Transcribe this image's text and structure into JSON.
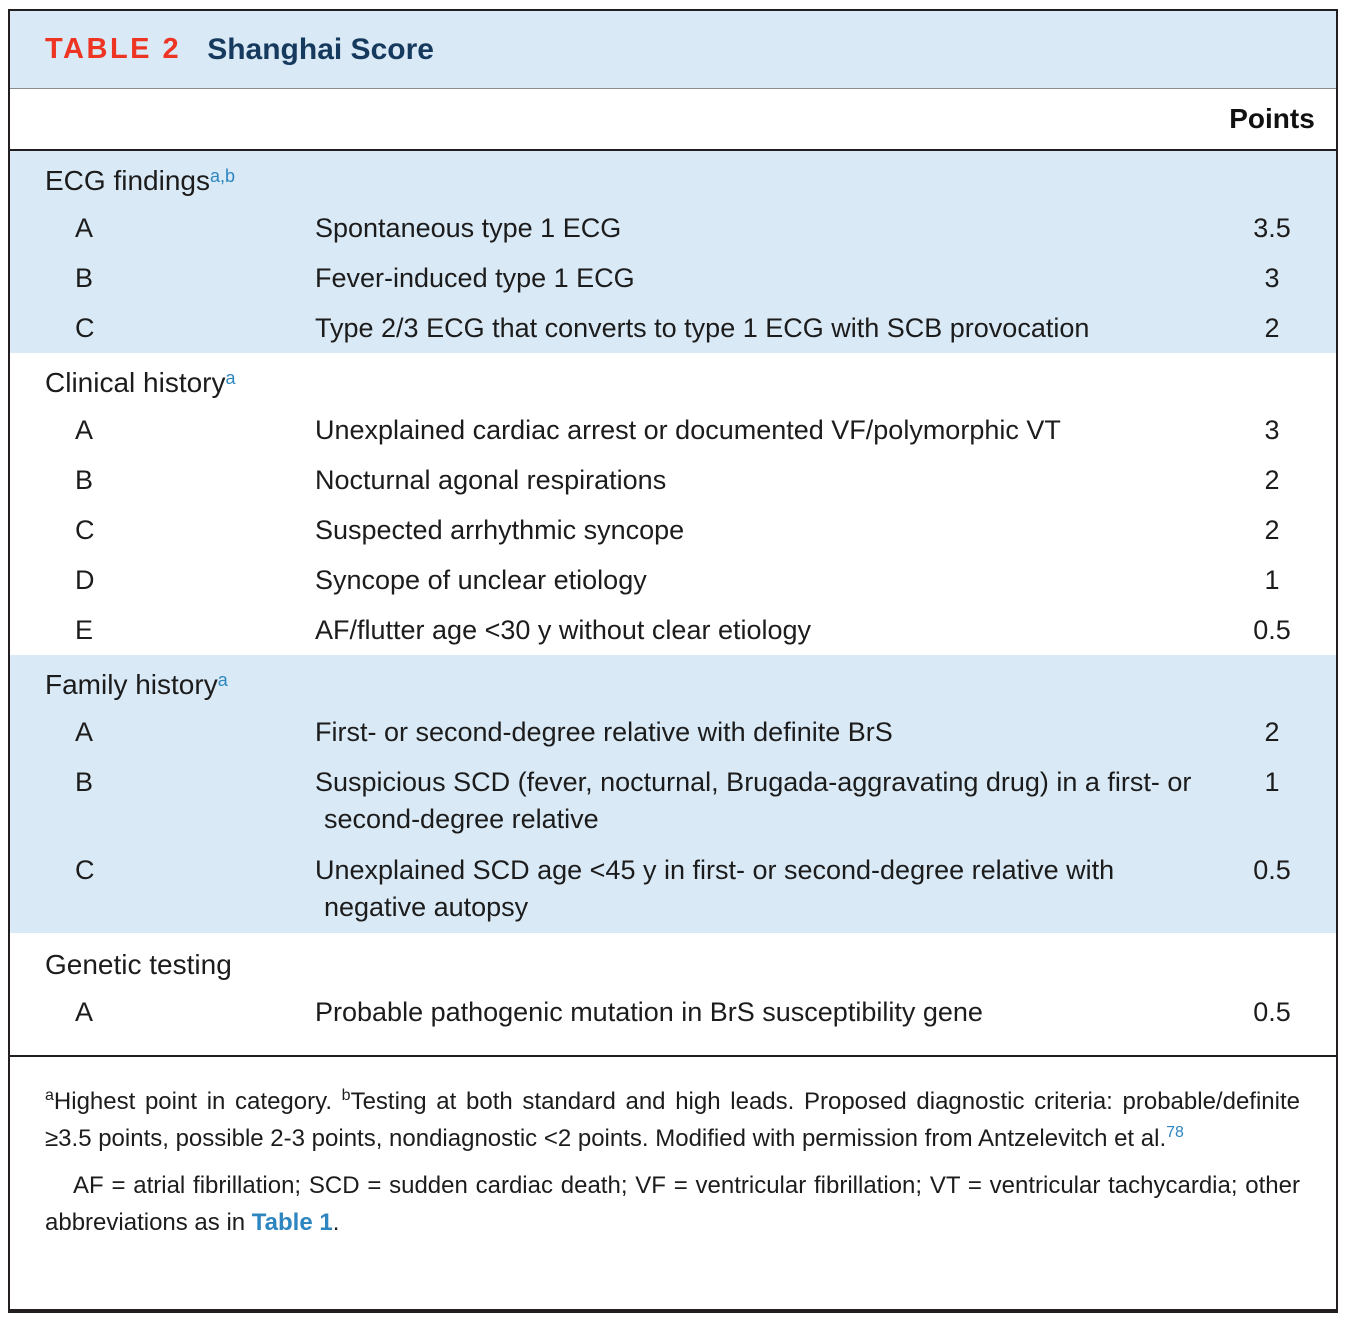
{
  "table": {
    "label": "TABLE 2",
    "title": "Shanghai Score",
    "points_header": "Points"
  },
  "sections": [
    {
      "title": "ECG findings",
      "sup": "a,b",
      "shaded": true,
      "rows": [
        {
          "letter": "A",
          "text": "Spontaneous type 1 ECG",
          "points": "3.5"
        },
        {
          "letter": "B",
          "text": "Fever-induced type 1 ECG",
          "points": "3"
        },
        {
          "letter": "C",
          "text": "Type 2/3 ECG that converts to type 1 ECG with SCB provocation",
          "points": "2"
        }
      ]
    },
    {
      "title": "Clinical history",
      "sup": "a",
      "shaded": false,
      "rows": [
        {
          "letter": "A",
          "text": "Unexplained cardiac arrest or documented VF/polymorphic VT",
          "points": "3"
        },
        {
          "letter": "B",
          "text": "Nocturnal agonal respirations",
          "points": "2"
        },
        {
          "letter": "C",
          "text": "Suspected arrhythmic syncope",
          "points": "2"
        },
        {
          "letter": "D",
          "text": "Syncope of unclear etiology",
          "points": "1"
        },
        {
          "letter": "E",
          "text": "AF/flutter age <30 y without clear etiology",
          "points": "0.5"
        }
      ]
    },
    {
      "title": "Family history",
      "sup": "a",
      "shaded": true,
      "rows": [
        {
          "letter": "A",
          "text": "First- or second-degree relative with definite BrS",
          "points": "2"
        },
        {
          "letter": "B",
          "text": "Suspicious SCD (fever, nocturnal, Brugada-aggravating drug) in a first- or second-degree relative",
          "points": "1"
        },
        {
          "letter": "C",
          "text": "Unexplained SCD age <45 y in first- or second-degree relative with negative autopsy",
          "points": "0.5"
        }
      ]
    },
    {
      "title": "Genetic testing",
      "sup": "",
      "shaded": false,
      "rows": [
        {
          "letter": "A",
          "text": "Probable pathogenic mutation in BrS susceptibility gene",
          "points": "0.5"
        }
      ]
    }
  ],
  "footnotes": {
    "note1": {
      "sup_a": "a",
      "part_a": "Highest point in category. ",
      "sup_b": "b",
      "part_b": "Testing at both standard and high leads. Proposed diagnostic criteria: probable/definite ≥3.5 points, possible 2-3 points, nondiagnostic <2 points. Modified with permission from Antzelevitch et al.",
      "ref": "78"
    },
    "note2": {
      "text": "AF = atrial fibrillation; SCD = sudden cardiac death; VF = ventricular fibrillation; VT = ventricular tachycardia; other abbreviations as in ",
      "link": "Table 1",
      "tail": "."
    }
  },
  "colors": {
    "shaded_row_bg": "#d9e9f5",
    "table_label_red": "#ee3524",
    "title_navy": "#16395e",
    "link_blue": "#2e86c0",
    "border_black": "#231f20"
  }
}
